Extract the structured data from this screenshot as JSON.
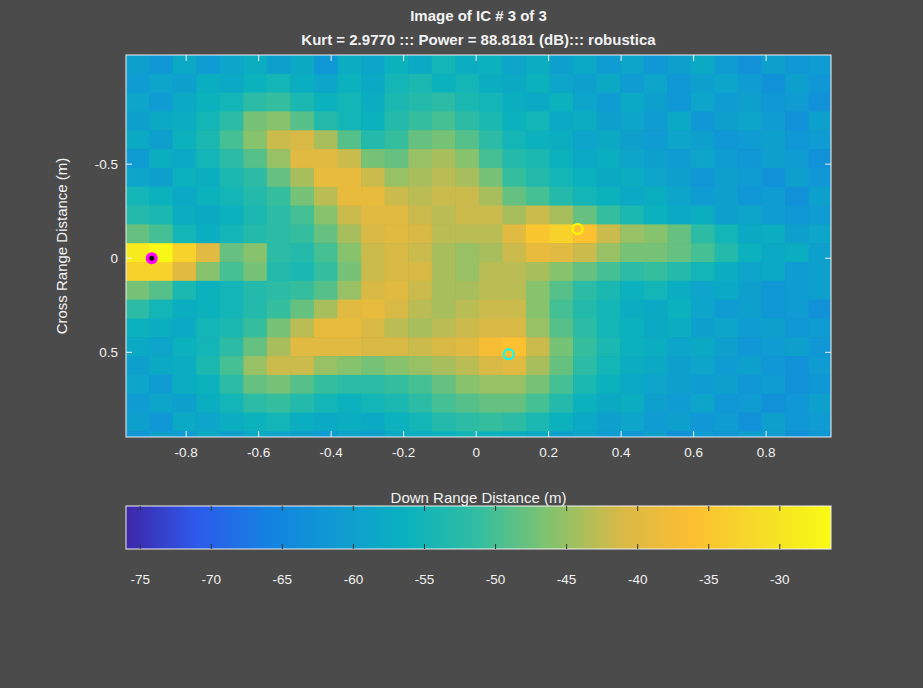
{
  "chart_data": {
    "type": "heatmap",
    "title": "Image of IC # 3 of 3",
    "subtitle": "Kurt = 2.9770 ::: Power = 88.8181 (dB)::: robustica",
    "x_label": "Down Range Distance (m)",
    "y_label": "Cross Range Distance (m)",
    "xlim": [
      -0.966,
      0.979
    ],
    "ylim": [
      -1.08,
      0.95
    ],
    "xticks": [
      -0.8,
      -0.6,
      -0.4,
      -0.2,
      0,
      0.2,
      0.4,
      0.6,
      0.8
    ],
    "yticks": [
      -0.5,
      0,
      0.5
    ],
    "x": [
      -0.935,
      -0.87,
      -0.805,
      -0.74,
      -0.675,
      -0.61,
      -0.545,
      -0.48,
      -0.415,
      -0.35,
      -0.285,
      -0.22,
      -0.155,
      -0.09,
      -0.025,
      0.04,
      0.105,
      0.17,
      0.235,
      0.3,
      0.365,
      0.43,
      0.495,
      0.56,
      0.625,
      0.69,
      0.755,
      0.82,
      0.885,
      0.95
    ],
    "y": [
      -1.03,
      -0.93,
      -0.83,
      -0.73,
      -0.63,
      -0.53,
      -0.43,
      -0.33,
      -0.23,
      -0.13,
      -0.03,
      0.07,
      0.17,
      0.27,
      0.37,
      0.47,
      0.57,
      0.67,
      0.77,
      0.87,
      0.97
    ],
    "cells": [
      [
        -60,
        -62,
        -58,
        -61,
        -59,
        -57,
        -60,
        -58,
        -62,
        -57,
        -59,
        -56,
        -58,
        -55,
        -57,
        -56,
        -59,
        -57,
        -60,
        -58,
        -61,
        -59,
        -62,
        -60,
        -58,
        -61,
        -63,
        -60,
        -62,
        -61
      ],
      [
        -61,
        -59,
        -60,
        -57,
        -58,
        -56,
        -55,
        -57,
        -59,
        -56,
        -58,
        -55,
        -54,
        -56,
        -55,
        -57,
        -58,
        -56,
        -59,
        -60,
        -58,
        -61,
        -59,
        -62,
        -60,
        -59,
        -61,
        -63,
        -60,
        -62
      ],
      [
        -59,
        -61,
        -58,
        -56,
        -55,
        -52,
        -51,
        -54,
        -56,
        -55,
        -57,
        -54,
        -53,
        -52,
        -54,
        -55,
        -57,
        -58,
        -56,
        -59,
        -61,
        -58,
        -60,
        -62,
        -59,
        -61,
        -60,
        -62,
        -61,
        -63
      ],
      [
        -60,
        -58,
        -57,
        -55,
        -52,
        -47,
        -46,
        -49,
        -53,
        -55,
        -56,
        -53,
        -51,
        -50,
        -52,
        -54,
        -56,
        -55,
        -58,
        -57,
        -60,
        -59,
        -61,
        -58,
        -62,
        -60,
        -59,
        -61,
        -63,
        -60
      ],
      [
        -58,
        -60,
        -56,
        -54,
        -50,
        -46,
        -42,
        -41,
        -44,
        -49,
        -53,
        -51,
        -48,
        -47,
        -49,
        -52,
        -55,
        -56,
        -57,
        -59,
        -58,
        -60,
        -61,
        -59,
        -60,
        -62,
        -61,
        -60,
        -62,
        -61
      ],
      [
        -61,
        -57,
        -58,
        -55,
        -52,
        -49,
        -45,
        -40,
        -40,
        -42,
        -47,
        -48,
        -45,
        -44,
        -46,
        -50,
        -53,
        -54,
        -56,
        -58,
        -57,
        -59,
        -60,
        -61,
        -59,
        -61,
        -62,
        -60,
        -61,
        -63
      ],
      [
        -59,
        -60,
        -56,
        -57,
        -54,
        -52,
        -48,
        -44,
        -39,
        -39,
        -42,
        -45,
        -44,
        -43,
        -44,
        -47,
        -51,
        -53,
        -55,
        -56,
        -58,
        -57,
        -59,
        -60,
        -62,
        -60,
        -61,
        -63,
        -60,
        -62
      ],
      [
        -55,
        -56,
        -58,
        -56,
        -55,
        -53,
        -51,
        -47,
        -43,
        -39,
        -39,
        -42,
        -43,
        -42,
        -42,
        -44,
        -48,
        -50,
        -53,
        -55,
        -56,
        -58,
        -57,
        -59,
        -61,
        -60,
        -62,
        -61,
        -63,
        -60
      ],
      [
        -53,
        -54,
        -57,
        -58,
        -56,
        -54,
        -52,
        -50,
        -46,
        -42,
        -40,
        -40,
        -42,
        -43,
        -42,
        -42,
        -44,
        -42,
        -44,
        -48,
        -51,
        -54,
        -56,
        -58,
        -57,
        -60,
        -59,
        -61,
        -62,
        -61
      ],
      [
        -48,
        -50,
        -55,
        -57,
        -55,
        -53,
        -52,
        -51,
        -48,
        -44,
        -41,
        -40,
        -41,
        -43,
        -43,
        -43,
        -40,
        -35,
        -33,
        -36,
        -42,
        -45,
        -46,
        -48,
        -52,
        -55,
        -58,
        -57,
        -60,
        -59
      ],
      [
        -29,
        -27,
        -33,
        -40,
        -48,
        -46,
        -52,
        -53,
        -50,
        -46,
        -42,
        -41,
        -42,
        -44,
        -45,
        -44,
        -42,
        -39,
        -40,
        -42,
        -45,
        -47,
        -47,
        -48,
        -50,
        -53,
        -56,
        -58,
        -57,
        -60
      ],
      [
        -33,
        -33,
        -40,
        -46,
        -50,
        -47,
        -53,
        -54,
        -51,
        -47,
        -42,
        -41,
        -41,
        -44,
        -45,
        -43,
        -43,
        -44,
        -46,
        -48,
        -50,
        -52,
        -51,
        -53,
        -55,
        -57,
        -59,
        -58,
        -61,
        -60
      ],
      [
        -47,
        -49,
        -54,
        -56,
        -55,
        -53,
        -52,
        -51,
        -49,
        -45,
        -41,
        -40,
        -42,
        -44,
        -44,
        -43,
        -43,
        -46,
        -49,
        -52,
        -54,
        -56,
        -55,
        -57,
        -59,
        -58,
        -60,
        -62,
        -61,
        -60
      ],
      [
        -52,
        -55,
        -57,
        -56,
        -55,
        -53,
        -51,
        -48,
        -44,
        -40,
        -39,
        -41,
        -43,
        -44,
        -43,
        -42,
        -42,
        -46,
        -50,
        -53,
        -55,
        -57,
        -58,
        -56,
        -59,
        -61,
        -60,
        -62,
        -61,
        -63
      ],
      [
        -56,
        -57,
        -58,
        -55,
        -54,
        -51,
        -47,
        -43,
        -39,
        -39,
        -41,
        -43,
        -44,
        -43,
        -42,
        -41,
        -41,
        -45,
        -49,
        -52,
        -55,
        -56,
        -58,
        -57,
        -60,
        -59,
        -61,
        -60,
        -62,
        -61
      ],
      [
        -58,
        -59,
        -56,
        -55,
        -52,
        -48,
        -44,
        -40,
        -40,
        -40,
        -41,
        -41,
        -42,
        -41,
        -40,
        -37,
        -36,
        -42,
        -47,
        -51,
        -54,
        -56,
        -57,
        -59,
        -58,
        -60,
        -62,
        -61,
        -60,
        -62
      ],
      [
        -60,
        -58,
        -57,
        -54,
        -50,
        -45,
        -42,
        -42,
        -45,
        -46,
        -47,
        -46,
        -45,
        -44,
        -43,
        -41,
        -40,
        -44,
        -48,
        -52,
        -55,
        -57,
        -58,
        -60,
        -59,
        -61,
        -60,
        -62,
        -63,
        -61
      ],
      [
        -59,
        -61,
        -57,
        -56,
        -52,
        -48,
        -47,
        -49,
        -51,
        -52,
        -52,
        -51,
        -50,
        -48,
        -46,
        -45,
        -45,
        -47,
        -50,
        -54,
        -56,
        -58,
        -59,
        -60,
        -61,
        -60,
        -62,
        -61,
        -63,
        -62
      ],
      [
        -61,
        -59,
        -60,
        -57,
        -55,
        -52,
        -51,
        -53,
        -55,
        -56,
        -55,
        -54,
        -52,
        -50,
        -49,
        -48,
        -48,
        -50,
        -53,
        -56,
        -58,
        -57,
        -60,
        -61,
        -59,
        -62,
        -61,
        -63,
        -62,
        -60
      ],
      [
        -60,
        -62,
        -58,
        -59,
        -57,
        -56,
        -55,
        -57,
        -58,
        -57,
        -58,
        -56,
        -55,
        -53,
        -52,
        -51,
        -52,
        -54,
        -56,
        -58,
        -60,
        -59,
        -61,
        -60,
        -62,
        -61,
        -63,
        -60,
        -62,
        -61
      ],
      [
        -62,
        -60,
        -61,
        -58,
        -60,
        -58,
        -59,
        -60,
        -61,
        -59,
        -60,
        -58,
        -57,
        -56,
        -55,
        -56,
        -57,
        -58,
        -60,
        -59,
        -61,
        -62,
        -60,
        -63,
        -61,
        -62,
        -60,
        -61,
        -63,
        -62
      ]
    ],
    "colorbar": {
      "range": [
        -76,
        -26.4
      ],
      "ticks": [
        -75,
        -70,
        -65,
        -60,
        -55,
        -50,
        -45,
        -40,
        -35,
        -30
      ]
    },
    "markers": [
      {
        "x": -0.895,
        "y": 0,
        "color": "#ff00ff",
        "marker": "dot"
      },
      {
        "x": 0.28,
        "y": -0.155,
        "color": "#ffff00",
        "marker": "circle"
      },
      {
        "x": 0.09,
        "y": 0.51,
        "color": "#00ffff",
        "marker": "circle"
      }
    ]
  }
}
